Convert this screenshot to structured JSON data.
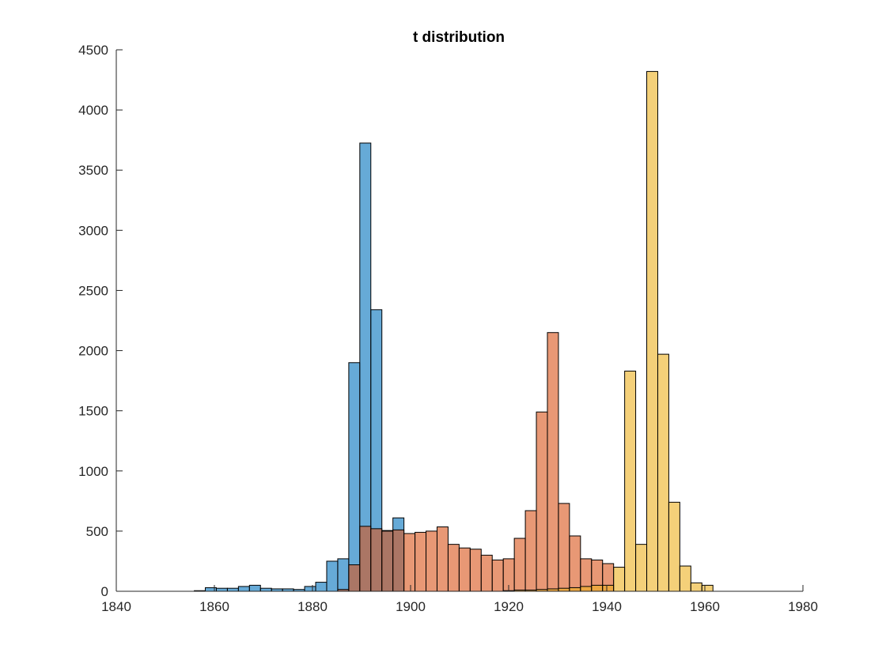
{
  "chart_data": {
    "type": "bar",
    "title": "t distribution",
    "xlabel": "",
    "ylabel": "",
    "xlim": [
      1840,
      1980
    ],
    "ylim": [
      0,
      4500
    ],
    "x_ticks": [
      1840,
      1860,
      1880,
      1900,
      1920,
      1940,
      1960,
      1980
    ],
    "y_ticks": [
      0,
      500,
      1000,
      1500,
      2000,
      2500,
      3000,
      3500,
      4000,
      4500
    ],
    "grid": false,
    "legend": "none",
    "bin_width": 2.25,
    "series": [
      {
        "color": "#0072BD",
        "opacity": 0.6,
        "bin_starts": [
          1855.9,
          1858.15,
          1860.4,
          1862.65,
          1864.9,
          1867.15,
          1869.4,
          1871.65,
          1873.9,
          1876.15,
          1878.4,
          1880.65,
          1882.9,
          1885.15,
          1887.4,
          1889.65,
          1891.9,
          1894.15,
          1896.4
        ],
        "values": [
          5,
          30,
          25,
          25,
          40,
          50,
          25,
          20,
          20,
          15,
          40,
          75,
          250,
          270,
          1900,
          3725,
          2340,
          505,
          610
        ]
      },
      {
        "color": "#D95319",
        "opacity": 0.6,
        "bin_starts": [
          1885.15,
          1887.4,
          1889.65,
          1891.9,
          1894.15,
          1896.4,
          1898.65,
          1900.9,
          1903.15,
          1905.4,
          1907.65,
          1909.9,
          1912.15,
          1914.4,
          1916.65,
          1918.9,
          1921.15,
          1923.4,
          1925.65,
          1927.9,
          1930.15,
          1932.4,
          1934.65,
          1936.9,
          1939.15
        ],
        "values": [
          15,
          220,
          540,
          520,
          500,
          510,
          480,
          490,
          500,
          535,
          390,
          360,
          350,
          300,
          260,
          270,
          440,
          670,
          1490,
          2150,
          730,
          460,
          270,
          260,
          230
        ]
      },
      {
        "color": "#EDB120",
        "opacity": 0.6,
        "bin_starts": [
          1918.9,
          1921.15,
          1923.4,
          1925.65,
          1927.9,
          1930.15,
          1932.4,
          1934.65,
          1936.9,
          1939.15,
          1941.4,
          1943.65,
          1945.9,
          1948.15,
          1950.4,
          1952.65,
          1954.9,
          1957.15,
          1959.4
        ],
        "values": [
          5,
          10,
          10,
          15,
          20,
          25,
          30,
          40,
          50,
          50,
          200,
          1830,
          390,
          4320,
          1970,
          740,
          210,
          70,
          50
        ]
      }
    ]
  }
}
